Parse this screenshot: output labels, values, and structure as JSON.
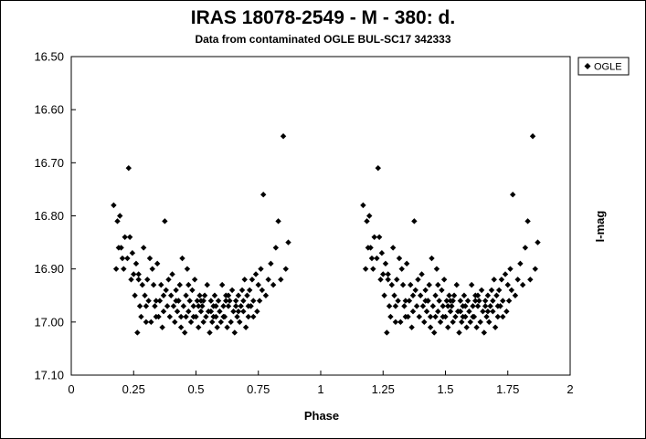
{
  "chart_data": {
    "type": "scatter",
    "title": "IRAS 18078-2549 - M - 380: d.",
    "subtitle": "Data from contaminated OGLE BUL-SC17  342333",
    "xlabel": "Phase",
    "ylabel": "I-mag",
    "xlim": [
      0,
      2
    ],
    "ylim": [
      16.5,
      17.1
    ],
    "y_inverted": true,
    "x_ticks": [
      "0",
      "0.25",
      "0.5",
      "0.75",
      "1",
      "1.25",
      "1.5",
      "1.75",
      "2"
    ],
    "y_ticks": [
      "16.50",
      "16.60",
      "16.70",
      "16.80",
      "16.90",
      "17.00",
      "17.10"
    ],
    "grid": false,
    "legend_position": "top-right",
    "marker_color": "#000000",
    "series": [
      {
        "name": "OGLE",
        "marker": "diamond",
        "points_phase_0_1": [
          [
            0.17,
            16.78
          ],
          [
            0.18,
            16.9
          ],
          [
            0.185,
            16.81
          ],
          [
            0.19,
            16.86
          ],
          [
            0.195,
            16.8
          ],
          [
            0.2,
            16.86
          ],
          [
            0.205,
            16.88
          ],
          [
            0.21,
            16.9
          ],
          [
            0.215,
            16.84
          ],
          [
            0.225,
            16.88
          ],
          [
            0.23,
            16.71
          ],
          [
            0.235,
            16.84
          ],
          [
            0.24,
            16.92
          ],
          [
            0.245,
            16.87
          ],
          [
            0.25,
            16.91
          ],
          [
            0.255,
            16.95
          ],
          [
            0.26,
            16.89
          ],
          [
            0.265,
            17.02
          ],
          [
            0.27,
            16.91
          ],
          [
            0.275,
            16.97
          ],
          [
            0.28,
            16.99
          ],
          [
            0.285,
            16.93
          ],
          [
            0.29,
            16.86
          ],
          [
            0.295,
            16.95
          ],
          [
            0.3,
            17.0
          ],
          [
            0.305,
            16.92
          ],
          [
            0.31,
            16.96
          ],
          [
            0.315,
            16.88
          ],
          [
            0.32,
            17.0
          ],
          [
            0.325,
            16.9
          ],
          [
            0.33,
            16.93
          ],
          [
            0.335,
            16.97
          ],
          [
            0.34,
            16.96
          ],
          [
            0.345,
            16.89
          ],
          [
            0.35,
            16.99
          ],
          [
            0.355,
            16.96
          ],
          [
            0.36,
            16.93
          ],
          [
            0.365,
            17.01
          ],
          [
            0.37,
            16.98
          ],
          [
            0.375,
            16.81
          ],
          [
            0.38,
            16.94
          ],
          [
            0.385,
            16.97
          ],
          [
            0.39,
            16.92
          ],
          [
            0.395,
            16.99
          ],
          [
            0.4,
            16.95
          ],
          [
            0.405,
            16.91
          ],
          [
            0.41,
            16.97
          ],
          [
            0.415,
            17.0
          ],
          [
            0.42,
            16.94
          ],
          [
            0.425,
            16.98
          ],
          [
            0.43,
            16.96
          ],
          [
            0.435,
            16.93
          ],
          [
            0.44,
            16.99
          ],
          [
            0.445,
            16.88
          ],
          [
            0.45,
            16.97
          ],
          [
            0.455,
            17.02
          ],
          [
            0.46,
            16.95
          ],
          [
            0.465,
            16.9
          ],
          [
            0.47,
            16.98
          ],
          [
            0.475,
            16.96
          ],
          [
            0.48,
            17.0
          ],
          [
            0.485,
            16.94
          ],
          [
            0.49,
            16.97
          ],
          [
            0.495,
            16.92
          ],
          [
            0.5,
            16.99
          ],
          [
            0.505,
            16.96
          ],
          [
            0.51,
            17.01
          ],
          [
            0.515,
            16.95
          ],
          [
            0.52,
            16.98
          ],
          [
            0.525,
            16.97
          ],
          [
            0.53,
            17.0
          ],
          [
            0.535,
            16.95
          ],
          [
            0.54,
            16.99
          ],
          [
            0.545,
            16.93
          ],
          [
            0.55,
            16.98
          ],
          [
            0.555,
            17.02
          ],
          [
            0.56,
            16.96
          ],
          [
            0.565,
            17.0
          ],
          [
            0.57,
            16.97
          ],
          [
            0.575,
            16.95
          ],
          [
            0.58,
            16.99
          ],
          [
            0.585,
            17.01
          ],
          [
            0.59,
            16.96
          ],
          [
            0.595,
            16.98
          ],
          [
            0.6,
            17.0
          ],
          [
            0.605,
            16.93
          ],
          [
            0.61,
            16.97
          ],
          [
            0.615,
            16.99
          ],
          [
            0.62,
            16.95
          ],
          [
            0.625,
            17.01
          ],
          [
            0.63,
            16.97
          ],
          [
            0.635,
            16.96
          ],
          [
            0.64,
            17.0
          ],
          [
            0.645,
            16.94
          ],
          [
            0.65,
            16.98
          ],
          [
            0.655,
            17.02
          ],
          [
            0.66,
            16.96
          ],
          [
            0.665,
            16.99
          ],
          [
            0.67,
            16.95
          ],
          [
            0.675,
            17.0
          ],
          [
            0.68,
            16.97
          ],
          [
            0.685,
            16.94
          ],
          [
            0.69,
            16.98
          ],
          [
            0.695,
            16.92
          ],
          [
            0.7,
            17.01
          ],
          [
            0.705,
            16.95
          ],
          [
            0.71,
            16.99
          ],
          [
            0.715,
            16.94
          ],
          [
            0.72,
            16.97
          ],
          [
            0.725,
            16.92
          ],
          [
            0.73,
            16.96
          ],
          [
            0.74,
            16.91
          ],
          [
            0.745,
            16.98
          ],
          [
            0.75,
            16.93
          ],
          [
            0.755,
            16.96
          ],
          [
            0.76,
            16.9
          ],
          [
            0.765,
            16.94
          ],
          [
            0.77,
            16.76
          ],
          [
            0.78,
            16.95
          ],
          [
            0.79,
            16.92
          ],
          [
            0.8,
            16.89
          ],
          [
            0.81,
            16.93
          ],
          [
            0.82,
            16.86
          ],
          [
            0.83,
            16.81
          ],
          [
            0.84,
            16.92
          ],
          [
            0.85,
            16.65
          ],
          [
            0.86,
            16.9
          ],
          [
            0.87,
            16.85
          ],
          [
            0.27,
            16.92
          ],
          [
            0.3,
            16.97
          ],
          [
            0.34,
            16.99
          ],
          [
            0.37,
            16.95
          ],
          [
            0.42,
            16.96
          ],
          [
            0.44,
            17.01
          ],
          [
            0.47,
            16.93
          ],
          [
            0.49,
            16.99
          ],
          [
            0.51,
            16.97
          ],
          [
            0.53,
            16.96
          ],
          [
            0.56,
            16.98
          ],
          [
            0.58,
            16.97
          ],
          [
            0.61,
            16.99
          ],
          [
            0.63,
            16.95
          ],
          [
            0.66,
            16.97
          ],
          [
            0.69,
            16.96
          ],
          [
            0.71,
            16.97
          ],
          [
            0.73,
            16.99
          ],
          [
            0.43,
            16.96
          ],
          [
            0.46,
            16.99
          ],
          [
            0.52,
            16.96
          ],
          [
            0.57,
            16.99
          ],
          [
            0.62,
            16.96
          ],
          [
            0.67,
            16.98
          ]
        ]
      }
    ]
  }
}
